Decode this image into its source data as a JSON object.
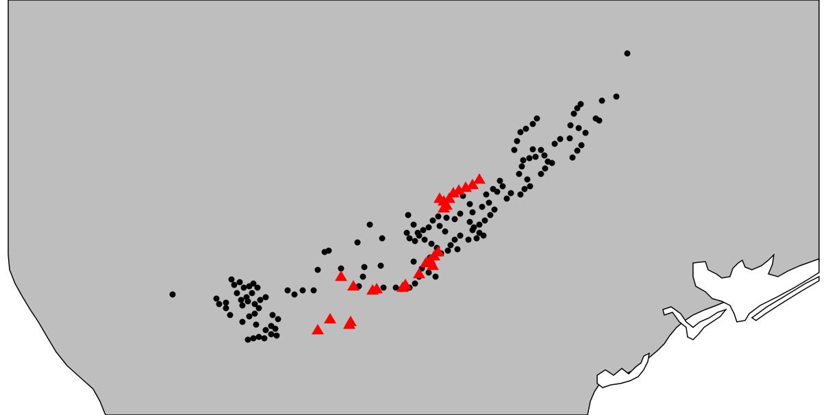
{
  "map": {
    "colors": {
      "land": "#bebebe",
      "water": "#ffffff",
      "coast_stroke": "#000000",
      "circle_marker": "#000000",
      "triangle_marker": "#ff0000"
    },
    "layers": [
      {
        "name": "circle-markers",
        "shape": "circle",
        "color": "#000000"
      },
      {
        "name": "triangle-markers",
        "shape": "triangle",
        "color": "#ff0000"
      }
    ]
  }
}
